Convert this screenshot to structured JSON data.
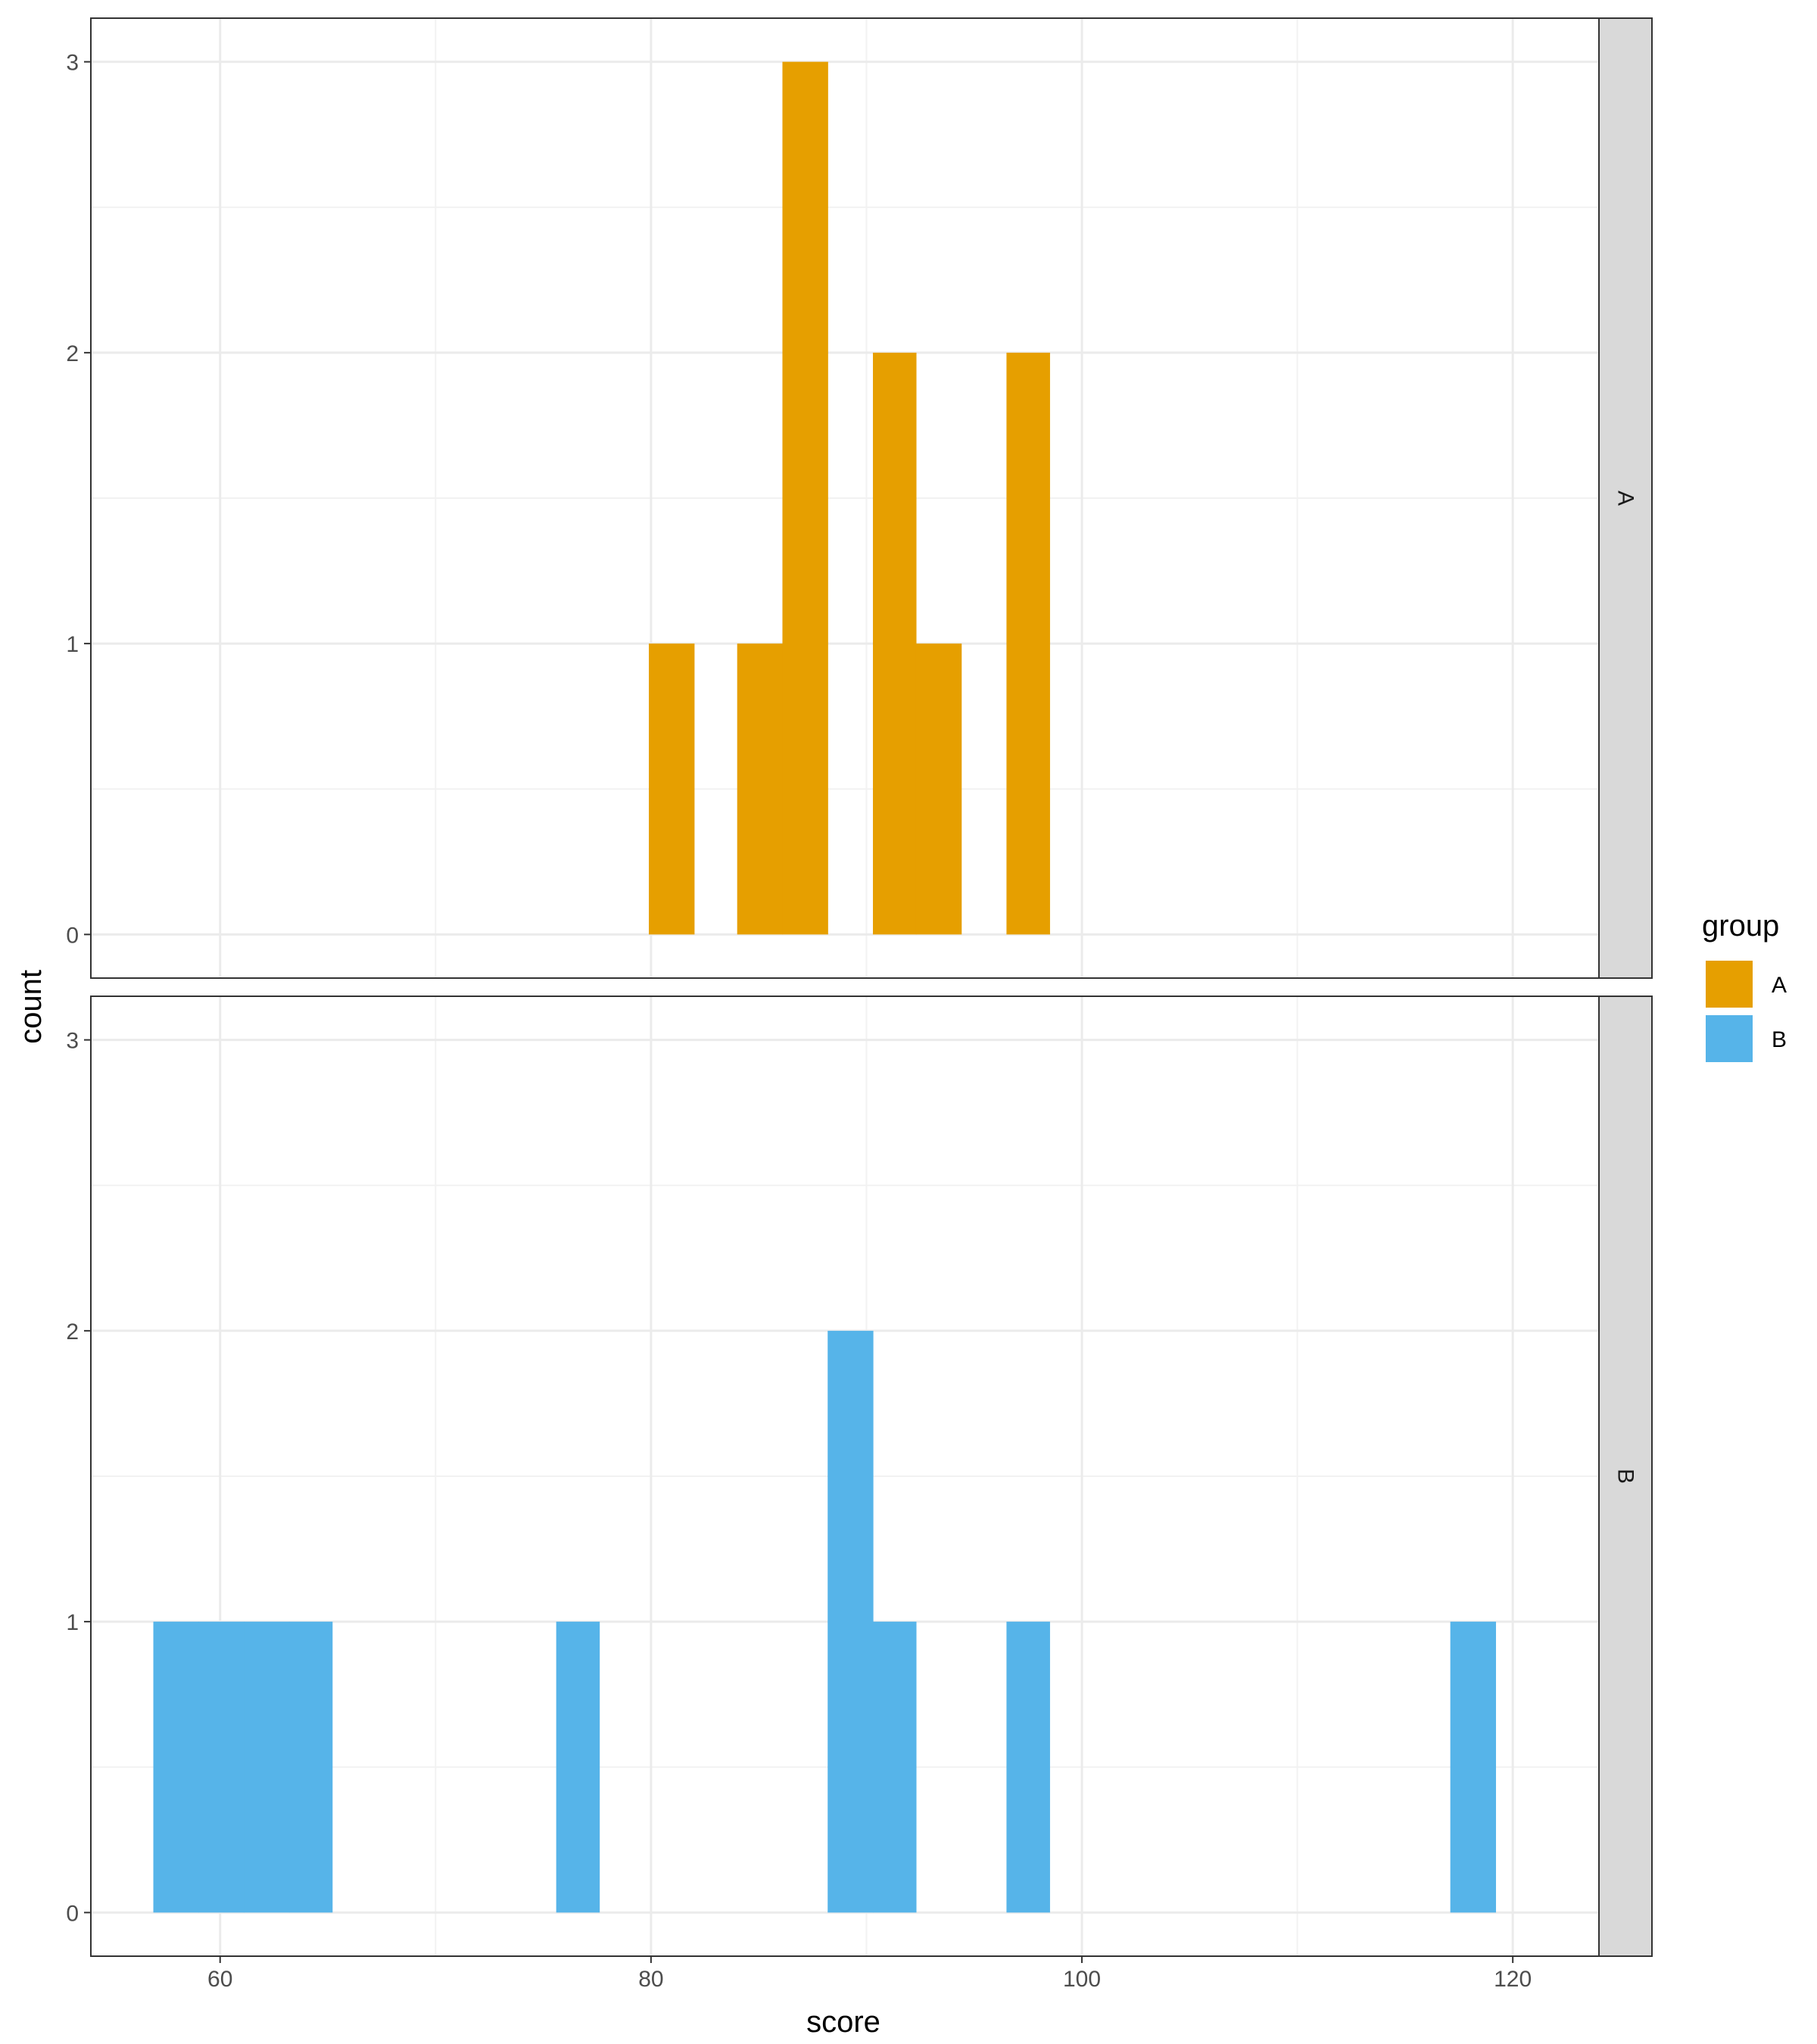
{
  "chart_data": {
    "type": "bar",
    "chart_kind": "faceted histogram",
    "xlabel": "score",
    "ylabel": "count",
    "xlim": [
      54,
      124
    ],
    "ylim": [
      -0.15,
      3.15
    ],
    "x_ticks": [
      60,
      80,
      100,
      120
    ],
    "y_ticks": [
      0,
      1,
      2,
      3
    ],
    "grid": true,
    "bin_width": 2.07,
    "legend": {
      "title": "group",
      "placement": "right",
      "entries": [
        {
          "label": "A",
          "color": "#E69F00"
        },
        {
          "label": "B",
          "color": "#56B4E9"
        }
      ]
    },
    "facets": [
      {
        "label": "A",
        "color": "#E69F00",
        "bins": [
          {
            "x0": 79.9,
            "x1": 82.0,
            "count": 1
          },
          {
            "x0": 84.0,
            "x1": 86.1,
            "count": 1
          },
          {
            "x0": 86.1,
            "x1": 88.2,
            "count": 3
          },
          {
            "x0": 90.3,
            "x1": 92.3,
            "count": 2
          },
          {
            "x0": 92.3,
            "x1": 94.4,
            "count": 1
          },
          {
            "x0": 96.5,
            "x1": 98.5,
            "count": 2
          }
        ]
      },
      {
        "label": "B",
        "color": "#56B4E9",
        "bins": [
          {
            "x0": 56.9,
            "x1": 59.0,
            "count": 1
          },
          {
            "x0": 59.0,
            "x1": 61.1,
            "count": 1
          },
          {
            "x0": 61.1,
            "x1": 63.2,
            "count": 1
          },
          {
            "x0": 63.2,
            "x1": 65.2,
            "count": 1
          },
          {
            "x0": 75.6,
            "x1": 77.6,
            "count": 1
          },
          {
            "x0": 88.2,
            "x1": 90.3,
            "count": 2
          },
          {
            "x0": 90.3,
            "x1": 92.3,
            "count": 1
          },
          {
            "x0": 96.5,
            "x1": 98.5,
            "count": 1
          },
          {
            "x0": 117.1,
            "x1": 119.2,
            "count": 1
          }
        ]
      }
    ]
  }
}
